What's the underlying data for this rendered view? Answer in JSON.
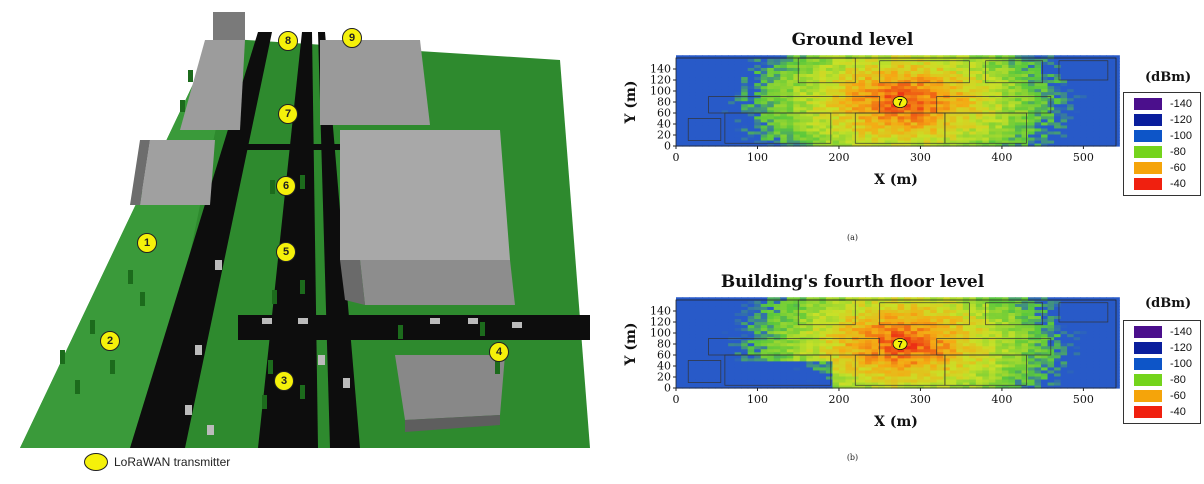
{
  "scene": {
    "transmitters": [
      {
        "id": "1",
        "label": "1"
      },
      {
        "id": "2",
        "label": "2"
      },
      {
        "id": "3",
        "label": "3"
      },
      {
        "id": "4",
        "label": "4"
      },
      {
        "id": "5",
        "label": "5"
      },
      {
        "id": "6",
        "label": "6"
      },
      {
        "id": "7",
        "label": "7"
      },
      {
        "id": "8",
        "label": "8"
      },
      {
        "id": "9",
        "label": "9"
      }
    ],
    "legend_label": "LoRaWAN transmitter",
    "colors": {
      "grass": "#2e8a2e",
      "road": "#0d0d0d",
      "building": "#8a8a8a",
      "marker": "#f5f10a"
    }
  },
  "colorbar": {
    "unit": "(dBm)",
    "levels": [
      {
        "label": "-140",
        "color": "#4b0f8c"
      },
      {
        "label": "-120",
        "color": "#0a1e9c"
      },
      {
        "label": "-100",
        "color": "#0d55c8"
      },
      {
        "label": "-80",
        "color": "#74d41c"
      },
      {
        "label": "-60",
        "color": "#f5a40a"
      },
      {
        "label": "-40",
        "color": "#f0200f"
      }
    ]
  },
  "chart_data": [
    {
      "type": "heatmap",
      "title": "Ground level",
      "caption": "(a)",
      "xlabel": "X (m)",
      "ylabel": "Y (m)",
      "xlim": [
        0,
        540
      ],
      "ylim": [
        0,
        160
      ],
      "xticks": [
        "0",
        "100",
        "200",
        "300",
        "400",
        "500"
      ],
      "yticks": [
        "0",
        "20",
        "40",
        "60",
        "80",
        "100",
        "120",
        "140"
      ],
      "transmitter_label": "7",
      "transmitter_xy": [
        275,
        80
      ]
    },
    {
      "type": "heatmap",
      "title": "Building's fourth floor level",
      "caption": "(b)",
      "xlabel": "X (m)",
      "ylabel": "Y (m)",
      "xlim": [
        0,
        540
      ],
      "ylim": [
        0,
        160
      ],
      "xticks": [
        "0",
        "100",
        "200",
        "300",
        "400",
        "500"
      ],
      "yticks": [
        "0",
        "20",
        "40",
        "60",
        "80",
        "100",
        "120",
        "140"
      ],
      "transmitter_label": "7",
      "transmitter_xy": [
        275,
        80
      ]
    }
  ]
}
